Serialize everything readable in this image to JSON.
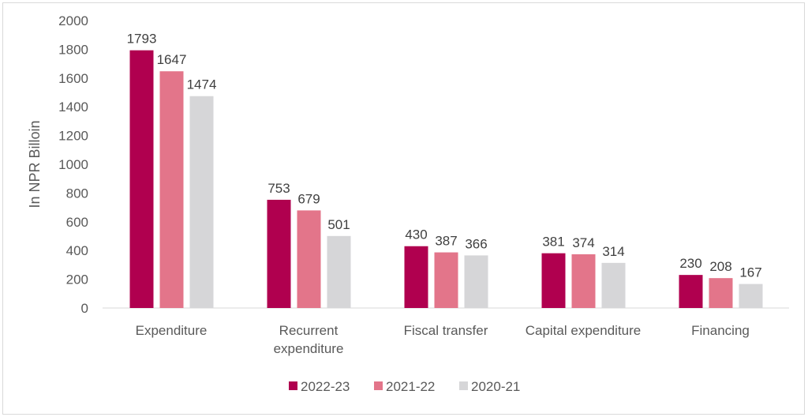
{
  "chart_data": {
    "type": "bar",
    "categories": [
      [
        "Expenditure"
      ],
      [
        "Recurrent",
        "expenditure"
      ],
      [
        "Fiscal transfer"
      ],
      [
        "Capital expenditure"
      ],
      [
        "Financing"
      ]
    ],
    "series": [
      {
        "name": "2022-23",
        "color": "#b0004f",
        "values": [
          1793,
          753,
          430,
          381,
          230
        ]
      },
      {
        "name": "2021-22",
        "color": "#e3758a",
        "values": [
          1647,
          679,
          387,
          374,
          208
        ]
      },
      {
        "name": "2020-21",
        "color": "#d6d6d8",
        "values": [
          1474,
          501,
          366,
          314,
          167
        ]
      }
    ],
    "ylabel": "In NPR Billoin",
    "ylim": [
      0,
      2000
    ],
    "yticks": [
      0,
      200,
      400,
      600,
      800,
      1000,
      1200,
      1400,
      1600,
      1800,
      2000
    ],
    "grid": false,
    "legend": "bottom"
  }
}
